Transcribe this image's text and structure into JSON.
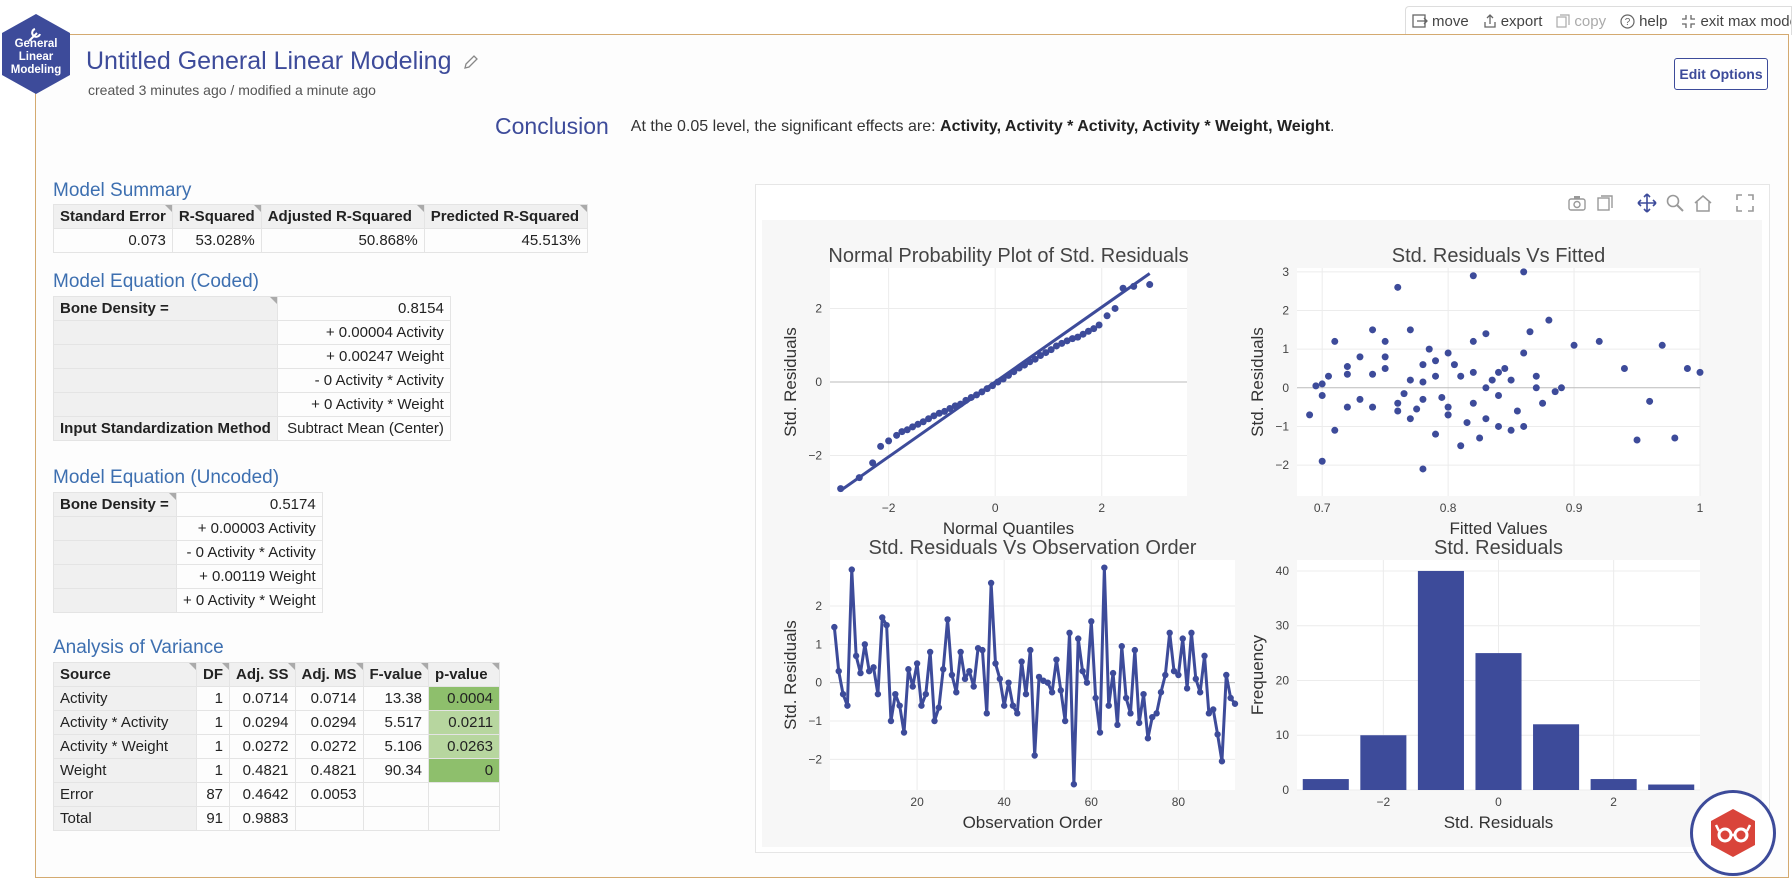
{
  "toolbar": {
    "move": "move",
    "export": "export",
    "copy": "copy",
    "help": "help",
    "exit": "exit max mode"
  },
  "badge": {
    "line1": "General",
    "line2": "Linear",
    "line3": "Modeling"
  },
  "header": {
    "title": "Untitled General Linear Modeling",
    "subtitle": "created 3 minutes ago / modified a minute ago",
    "edit_button": "Edit Options"
  },
  "conclusion": {
    "label": "Conclusion",
    "prefix": "At the 0.05 level, the significant effects are: ",
    "effects": "Activity, Activity * Activity, Activity * Weight, Weight",
    "suffix": "."
  },
  "model_summary": {
    "title": "Model Summary",
    "headers": [
      "Standard Error",
      "R-Squared",
      "Adjusted R-Squared",
      "Predicted R-Squared"
    ],
    "values": [
      "0.073",
      "53.028%",
      "50.868%",
      "45.513%"
    ]
  },
  "coded": {
    "title": "Model Equation (Coded)",
    "lhs": "Bone Density =",
    "terms": [
      "0.8154",
      "+ 0.00004 Activity",
      "+ 0.00247 Weight",
      "- 0 Activity * Activity",
      "+ 0 Activity * Weight"
    ],
    "method_label": "Input Standardization Method",
    "method_value": "Subtract Mean (Center)"
  },
  "uncoded": {
    "title": "Model Equation (Uncoded)",
    "lhs": "Bone Density =",
    "terms": [
      "0.5174",
      "+ 0.00003 Activity",
      "- 0 Activity * Activity",
      "+ 0.00119 Weight",
      "+ 0 Activity * Weight"
    ]
  },
  "anova": {
    "title": "Analysis of Variance",
    "headers": [
      "Source",
      "DF",
      "Adj. SS",
      "Adj. MS",
      "F-value",
      "p-value"
    ],
    "rows": [
      [
        "Activity",
        "1",
        "0.0714",
        "0.0714",
        "13.38",
        "0.0004"
      ],
      [
        "Activity * Activity",
        "1",
        "0.0294",
        "0.0294",
        "5.517",
        "0.0211"
      ],
      [
        "Activity * Weight",
        "1",
        "0.0272",
        "0.0272",
        "5.106",
        "0.0263"
      ],
      [
        "Weight",
        "1",
        "0.4821",
        "0.4821",
        "90.34",
        "0"
      ],
      [
        "Error",
        "87",
        "0.4642",
        "0.0053",
        "",
        ""
      ],
      [
        "Total",
        "91",
        "0.9883",
        "",
        "",
        ""
      ]
    ]
  },
  "accent": "#3d4b9a",
  "chart_data": [
    {
      "type": "scatter",
      "title": "Normal Probability Plot of Std. Residuals",
      "xlabel": "Normal Quantiles",
      "ylabel": "Std. Residuals",
      "xlim": [
        -3.1,
        3.6
      ],
      "ylim": [
        -3.1,
        3.1
      ],
      "xticks": [
        -2,
        0,
        2
      ],
      "yticks": [
        -2,
        0,
        2
      ],
      "fit_line": [
        [
          -2.9,
          -2.95
        ],
        [
          2.9,
          2.95
        ]
      ],
      "x": [
        -2.9,
        -2.55,
        -2.3,
        -2.15,
        -2.0,
        -1.85,
        -1.75,
        -1.65,
        -1.55,
        -1.45,
        -1.35,
        -1.25,
        -1.15,
        -1.05,
        -0.95,
        -0.85,
        -0.75,
        -0.65,
        -0.55,
        -0.45,
        -0.35,
        -0.25,
        -0.15,
        -0.05,
        0.05,
        0.15,
        0.25,
        0.35,
        0.45,
        0.55,
        0.65,
        0.75,
        0.85,
        0.95,
        1.05,
        1.15,
        1.25,
        1.35,
        1.45,
        1.55,
        1.65,
        1.75,
        1.85,
        1.95,
        2.1,
        2.25,
        2.4,
        2.6,
        2.9
      ],
      "y": [
        -2.9,
        -2.6,
        -2.2,
        -1.75,
        -1.6,
        -1.45,
        -1.35,
        -1.3,
        -1.22,
        -1.15,
        -1.08,
        -1.0,
        -0.92,
        -0.85,
        -0.8,
        -0.72,
        -0.65,
        -0.6,
        -0.5,
        -0.42,
        -0.35,
        -0.27,
        -0.18,
        -0.1,
        0.0,
        0.08,
        0.18,
        0.28,
        0.38,
        0.46,
        0.55,
        0.62,
        0.72,
        0.8,
        0.88,
        0.98,
        1.05,
        1.12,
        1.18,
        1.22,
        1.3,
        1.38,
        1.45,
        1.55,
        1.8,
        2.0,
        2.55,
        2.6,
        2.65
      ]
    },
    {
      "type": "scatter",
      "title": "Std. Residuals Vs Fitted",
      "xlabel": "Fitted Values",
      "ylabel": "Std. Residuals",
      "xlim": [
        0.68,
        1.0
      ],
      "ylim": [
        -2.8,
        3.1
      ],
      "xticks": [
        0.7,
        0.8,
        0.9,
        1
      ],
      "yticks": [
        -2,
        -1,
        0,
        1,
        2,
        3
      ],
      "x": [
        0.7,
        0.7,
        0.7,
        0.71,
        0.71,
        0.72,
        0.72,
        0.73,
        0.73,
        0.74,
        0.74,
        0.75,
        0.75,
        0.76,
        0.76,
        0.77,
        0.77,
        0.77,
        0.78,
        0.78,
        0.78,
        0.79,
        0.79,
        0.79,
        0.8,
        0.8,
        0.8,
        0.81,
        0.81,
        0.82,
        0.82,
        0.82,
        0.83,
        0.83,
        0.83,
        0.84,
        0.84,
        0.85,
        0.85,
        0.86,
        0.86,
        0.86,
        0.87,
        0.87,
        0.88,
        0.89,
        0.9,
        0.92,
        0.94,
        0.95,
        0.96,
        0.97,
        0.98,
        0.99,
        1.0,
        0.72,
        0.74,
        0.76,
        0.78,
        0.8,
        0.82,
        0.84,
        0.69,
        0.695,
        0.705,
        0.75,
        0.765,
        0.775,
        0.785,
        0.795,
        0.805,
        0.815,
        0.825,
        0.835,
        0.845,
        0.855,
        0.865,
        0.875,
        0.885
      ],
      "y": [
        0.1,
        -0.2,
        -1.9,
        1.2,
        -1.1,
        0.35,
        0.55,
        0.8,
        -0.3,
        1.5,
        -0.5,
        1.2,
        0.5,
        -0.4,
        2.6,
        0.2,
        -0.8,
        1.5,
        -0.3,
        0.6,
        -2.1,
        0.7,
        -1.2,
        0.3,
        -0.5,
        0.9,
        -0.7,
        -1.5,
        0.3,
        2.9,
        -0.4,
        0.4,
        0.0,
        1.4,
        -0.8,
        0.4,
        -1.0,
        -1.1,
        0.2,
        0.9,
        -1.0,
        3.0,
        0.0,
        0.3,
        1.75,
        0.0,
        1.1,
        1.2,
        0.5,
        -1.35,
        -0.35,
        1.1,
        -1.3,
        0.5,
        0.4,
        -0.5,
        0.35,
        -0.6,
        0.15,
        -0.7,
        1.2,
        -0.2,
        -0.7,
        0.05,
        0.3,
        0.8,
        -0.15,
        -0.55,
        1.0,
        -0.25,
        0.6,
        -0.9,
        -1.3,
        0.2,
        0.5,
        -0.6,
        1.45,
        -0.4,
        -0.1
      ]
    },
    {
      "type": "line",
      "title": "Std. Residuals Vs Observation Order",
      "xlabel": "Observation Order",
      "ylabel": "Std. Residuals",
      "xlim": [
        0,
        93
      ],
      "ylim": [
        -2.8,
        3.2
      ],
      "xticks": [
        20,
        40,
        60,
        80
      ],
      "yticks": [
        -2,
        -1,
        0,
        1,
        2
      ],
      "y": [
        1.45,
        0.3,
        -0.3,
        -0.6,
        2.95,
        0.7,
        0.25,
        1.0,
        0.3,
        0.4,
        -0.3,
        1.7,
        1.5,
        -1.0,
        -0.3,
        -0.6,
        -1.3,
        0.35,
        -0.1,
        0.5,
        -0.6,
        -0.3,
        0.8,
        -1.0,
        -0.65,
        0.35,
        1.65,
        0.2,
        -0.25,
        0.8,
        0.1,
        0.3,
        -0.1,
        0.9,
        0.85,
        -0.8,
        2.6,
        0.5,
        0.1,
        -0.6,
        0.0,
        -0.6,
        -0.8,
        0.55,
        -0.3,
        0.85,
        -1.9,
        0.15,
        0.05,
        0.0,
        -0.25,
        0.6,
        -0.2,
        -1.0,
        1.3,
        -2.65,
        1.15,
        0.3,
        0.0,
        1.6,
        -0.4,
        -1.3,
        3.0,
        -0.6,
        0.25,
        -1.1,
        0.95,
        -0.4,
        -0.8,
        0.85,
        -1.05,
        -0.3,
        -1.45,
        -0.9,
        -0.8,
        -0.25,
        0.2,
        1.3,
        0.3,
        0.2,
        1.15,
        -0.15,
        1.3,
        0.1,
        -0.25,
        0.7,
        -0.8,
        -0.7,
        -1.35,
        -2.05,
        0.2,
        -0.4,
        -0.55
      ]
    },
    {
      "type": "bar",
      "title": "Std. Residuals",
      "xlabel": "Std. Residuals",
      "ylabel": "Frequency",
      "xlim": [
        -3.5,
        3.5
      ],
      "ylim": [
        0,
        42
      ],
      "xticks": [
        -2,
        0,
        2
      ],
      "yticks": [
        0,
        10,
        20,
        30,
        40
      ],
      "bin_centers": [
        -3,
        -2,
        -1,
        0,
        1,
        2,
        3
      ],
      "bin_width": 1,
      "values": [
        2,
        10,
        40,
        25,
        12,
        2,
        1
      ]
    }
  ]
}
